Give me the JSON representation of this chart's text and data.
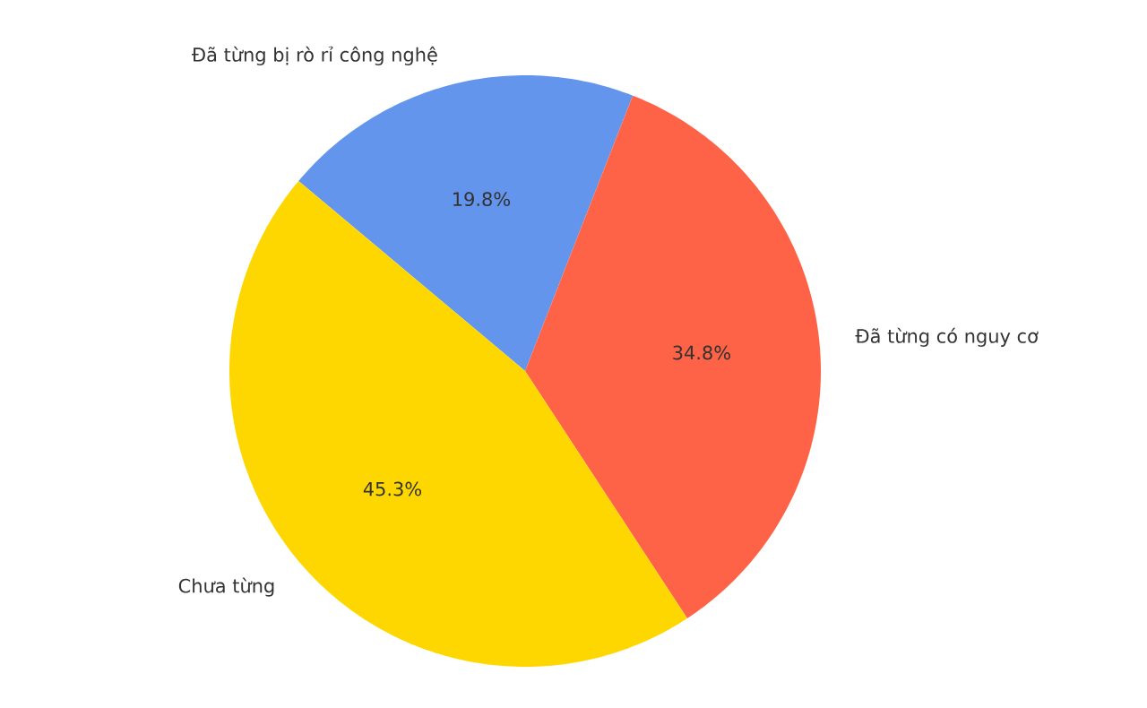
{
  "chart_data": {
    "type": "pie",
    "categories": [
      "Đã từng bị rò rỉ công nghệ",
      "Đã từng có nguy cơ",
      "Chưa từng"
    ],
    "values": [
      19.8,
      34.8,
      45.3
    ],
    "value_labels": [
      "19.8%",
      "34.8%",
      "45.3%"
    ],
    "colors": [
      "#6495ed",
      "#ff6347",
      "#ffd700"
    ]
  }
}
